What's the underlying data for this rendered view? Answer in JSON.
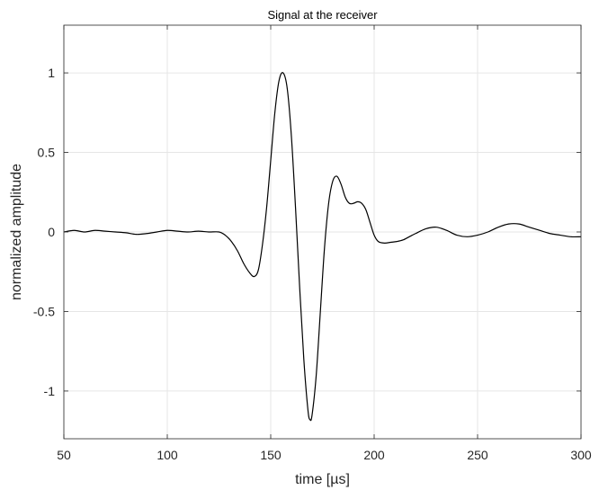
{
  "chart_data": {
    "type": "line",
    "title": "Signal at the receiver",
    "xlabel": "time [µs]",
    "ylabel": "normalized amplitude",
    "xlim": [
      50,
      300
    ],
    "ylim": [
      -1.3,
      1.3
    ],
    "x_ticks": [
      50,
      100,
      150,
      200,
      250,
      300
    ],
    "x_tick_labels": [
      "50",
      "100",
      "150",
      "200",
      "250",
      "300"
    ],
    "y_ticks": [
      -1,
      -0.5,
      0,
      0.5,
      1
    ],
    "y_tick_labels": [
      "-1",
      "-0.5",
      "0",
      "0.5",
      "1"
    ],
    "grid": true,
    "line_color": "#000000",
    "grid_color": "#e6e6e6",
    "axis_color": "#262626",
    "series": [
      {
        "x": [
          50,
          55,
          60,
          65,
          70,
          75,
          80,
          85,
          90,
          95,
          100,
          105,
          110,
          115,
          120,
          125,
          128,
          131,
          134,
          137,
          140,
          142,
          144,
          146,
          148,
          150,
          152,
          154,
          156,
          158,
          160,
          162,
          164,
          166,
          168,
          169,
          170,
          172,
          174,
          176,
          178,
          180,
          182,
          184,
          186,
          188,
          190,
          192,
          194,
          196,
          198,
          200,
          202,
          205,
          208,
          211,
          214,
          217,
          220,
          225,
          230,
          235,
          240,
          245,
          250,
          255,
          260,
          265,
          270,
          275,
          280,
          285,
          290,
          295,
          300
        ],
        "y": [
          0.0,
          0.01,
          0.0,
          0.01,
          0.005,
          0.0,
          -0.005,
          -0.015,
          -0.01,
          0.0,
          0.01,
          0.005,
          0.0,
          0.005,
          0.0,
          0.0,
          -0.02,
          -0.06,
          -0.12,
          -0.2,
          -0.26,
          -0.28,
          -0.24,
          -0.08,
          0.15,
          0.45,
          0.75,
          0.95,
          1.0,
          0.9,
          0.6,
          0.15,
          -0.35,
          -0.8,
          -1.12,
          -1.18,
          -1.15,
          -0.9,
          -0.5,
          -0.1,
          0.18,
          0.32,
          0.35,
          0.3,
          0.22,
          0.18,
          0.18,
          0.19,
          0.18,
          0.14,
          0.06,
          -0.02,
          -0.06,
          -0.07,
          -0.065,
          -0.06,
          -0.05,
          -0.03,
          -0.01,
          0.02,
          0.03,
          0.01,
          -0.02,
          -0.03,
          -0.02,
          0.0,
          0.03,
          0.05,
          0.05,
          0.03,
          0.01,
          -0.01,
          -0.02,
          -0.03,
          -0.03
        ]
      }
    ]
  }
}
